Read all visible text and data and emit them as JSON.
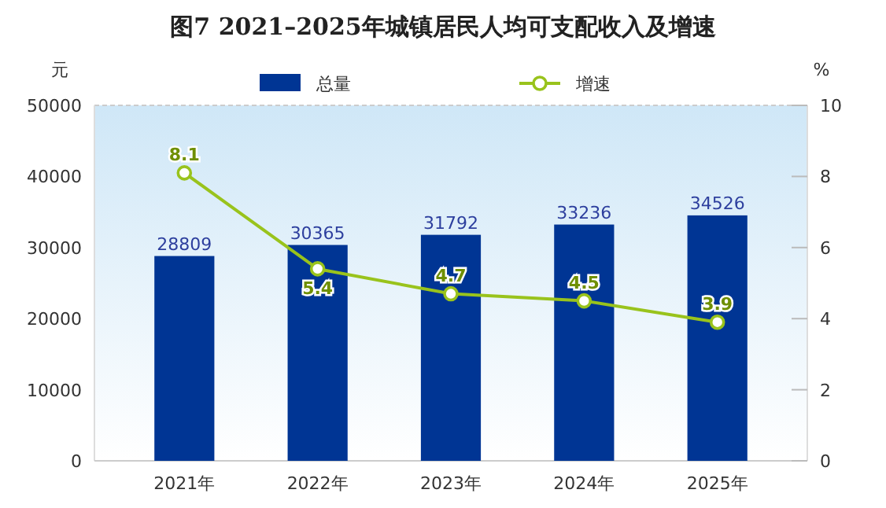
{
  "chart_data": {
    "type": "bar",
    "title": "图7  2021–2025年城镇居民人均可支配收入及增速",
    "ylabel": "元",
    "y2label": "%",
    "categories": [
      "2021年",
      "2022年",
      "2023年",
      "2024年",
      "2025年"
    ],
    "series": [
      {
        "name": "总量",
        "color": "#003594",
        "values": [
          28809,
          30365,
          31792,
          33236,
          34526
        ]
      },
      {
        "name": "增速",
        "type": "line",
        "axis": "y2",
        "color": "#99c31c",
        "marker": "circle",
        "values": [
          8.1,
          5.4,
          4.7,
          4.5,
          3.9
        ]
      }
    ],
    "ylim": [
      0,
      50000
    ],
    "yticks": [
      0,
      10000,
      20000,
      30000,
      40000,
      50000
    ],
    "y2lim": [
      0,
      10
    ],
    "y2ticks": [
      0,
      2,
      4,
      6,
      8,
      10
    ],
    "data_labels": true,
    "legend": "top",
    "grid": false
  }
}
